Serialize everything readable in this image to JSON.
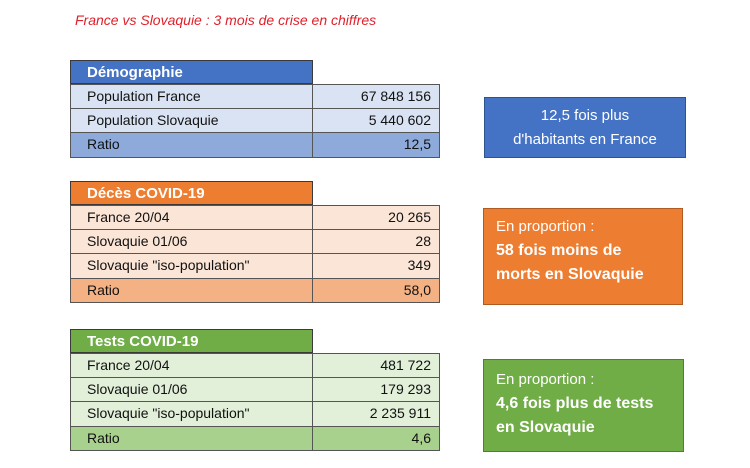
{
  "title": "France vs Slovaquie : 3 mois de crise en chiffres",
  "colors": {
    "blue": "#4472c4",
    "orange": "#ed7d31",
    "green": "#70ad47"
  },
  "demographie": {
    "header": "Démographie",
    "rows": [
      {
        "label": "Population France",
        "value": "67 848 156"
      },
      {
        "label": "Population Slovaquie",
        "value": "5 440 602"
      },
      {
        "label": "Ratio",
        "value": "12,5"
      }
    ]
  },
  "deces": {
    "header": "Décès COVID-19",
    "rows": [
      {
        "label": "France 20/04",
        "value": "20 265"
      },
      {
        "label": "Slovaquie 01/06",
        "value": "28"
      },
      {
        "label": "Slovaquie \"iso-population\"",
        "value": "349"
      },
      {
        "label": "Ratio",
        "value": "58,0"
      }
    ]
  },
  "tests": {
    "header": "Tests COVID-19",
    "rows": [
      {
        "label": "France 20/04",
        "value": "481 722"
      },
      {
        "label": "Slovaquie 01/06",
        "value": "179 293"
      },
      {
        "label": "Slovaquie \"iso-population\"",
        "value": "2 235 911"
      },
      {
        "label": "Ratio",
        "value": "4,6"
      }
    ]
  },
  "boxes": {
    "demographie": {
      "line1": "12,5 fois plus",
      "line2": "d'habitants en France"
    },
    "deces": {
      "intro": "En proportion :",
      "line1": "58 fois moins de",
      "line2": "morts en Slovaquie"
    },
    "tests": {
      "intro": "En proportion :",
      "line1": "4,6 fois plus de tests",
      "line2": "en Slovaquie"
    }
  }
}
